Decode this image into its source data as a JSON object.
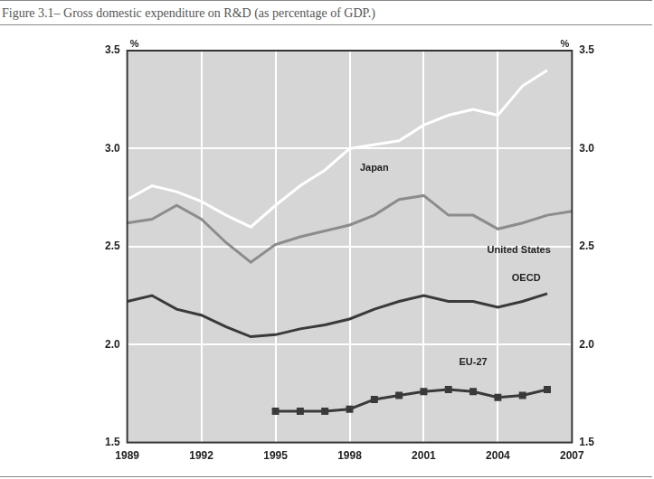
{
  "chart_data": {
    "type": "line",
    "title": "Figure 3.1– Gross domestic expenditure on R&D (as percentage of GDP.)",
    "ylabel": "%",
    "y2label": "%",
    "x": [
      1989,
      1990,
      1991,
      1992,
      1993,
      1994,
      1995,
      1996,
      1997,
      1998,
      1999,
      2000,
      2001,
      2002,
      2003,
      2004,
      2005,
      2006,
      2007
    ],
    "series": [
      {
        "name": "Japan",
        "color": "#ffffff",
        "marker": "none",
        "values": [
          2.74,
          2.81,
          2.78,
          2.73,
          2.66,
          2.6,
          2.71,
          2.81,
          2.89,
          3.0,
          3.02,
          3.04,
          3.12,
          3.17,
          3.2,
          3.17,
          3.32,
          3.4,
          null
        ]
      },
      {
        "name": "United States",
        "color": "#8c8c8c",
        "marker": "none",
        "values": [
          2.62,
          2.64,
          2.71,
          2.64,
          2.52,
          2.42,
          2.51,
          2.55,
          2.58,
          2.61,
          2.66,
          2.74,
          2.76,
          2.66,
          2.66,
          2.59,
          2.62,
          2.66,
          2.68
        ]
      },
      {
        "name": "OECD",
        "color": "#3a3a3a",
        "marker": "none",
        "values": [
          2.22,
          2.25,
          2.18,
          2.15,
          2.09,
          2.04,
          2.05,
          2.08,
          2.1,
          2.13,
          2.18,
          2.22,
          2.25,
          2.22,
          2.22,
          2.19,
          2.22,
          2.26,
          null
        ]
      },
      {
        "name": "EU-27",
        "color": "#3a3a3a",
        "marker": "square",
        "values": [
          null,
          null,
          null,
          null,
          null,
          null,
          1.66,
          1.66,
          1.66,
          1.67,
          1.72,
          1.74,
          1.76,
          1.77,
          1.76,
          1.73,
          1.74,
          1.77,
          null
        ]
      }
    ],
    "xlim": [
      1989,
      2007
    ],
    "xticks": [
      1989,
      1992,
      1995,
      1998,
      2001,
      2004,
      2007
    ],
    "ylim": [
      1.5,
      3.5
    ],
    "yticks": [
      1.5,
      {
        "value": 2,
        "label": "2.0"
      },
      2.5,
      {
        "value": 3,
        "label": "3.0"
      },
      3.5
    ],
    "y2lim": [
      1.5,
      3.5
    ],
    "y2ticks": [
      1.5,
      {
        "value": 2,
        "label": "2.0"
      },
      2.5,
      {
        "value": 3,
        "label": "3.0"
      },
      3.5
    ],
    "grid": true
  }
}
